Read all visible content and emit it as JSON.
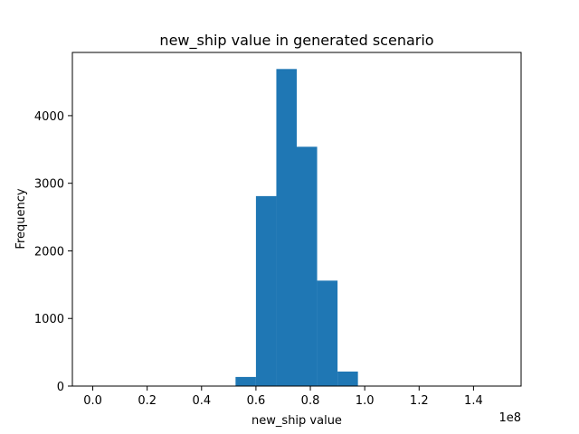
{
  "chart_data": {
    "type": "bar",
    "title": "new_ship value in generated scenario",
    "xlabel": "new_ship value",
    "ylabel": "Frequency",
    "x_offset_label": "1e8",
    "xlim": [
      -0.075,
      1.575
    ],
    "ylim": [
      0,
      4935
    ],
    "x_ticks": [
      0.0,
      0.2,
      0.4,
      0.6,
      0.8,
      1.0,
      1.2,
      1.4
    ],
    "x_tick_labels": [
      "0.0",
      "0.2",
      "0.4",
      "0.6",
      "0.8",
      "1.0",
      "1.2",
      "1.4"
    ],
    "y_ticks": [
      0,
      1000,
      2000,
      3000,
      4000
    ],
    "y_tick_labels": [
      "0",
      "1000",
      "2000",
      "3000",
      "4000"
    ],
    "bins": [
      {
        "x0": 0.525,
        "x1": 0.6,
        "value": 135
      },
      {
        "x0": 0.6,
        "x1": 0.675,
        "value": 2810
      },
      {
        "x0": 0.675,
        "x1": 0.75,
        "value": 4690
      },
      {
        "x0": 0.75,
        "x1": 0.825,
        "value": 3540
      },
      {
        "x0": 0.825,
        "x1": 0.9,
        "value": 1560
      },
      {
        "x0": 0.9,
        "x1": 0.975,
        "value": 215
      }
    ],
    "bar_color": "#1f77b4",
    "grid": false,
    "legend": "none"
  }
}
